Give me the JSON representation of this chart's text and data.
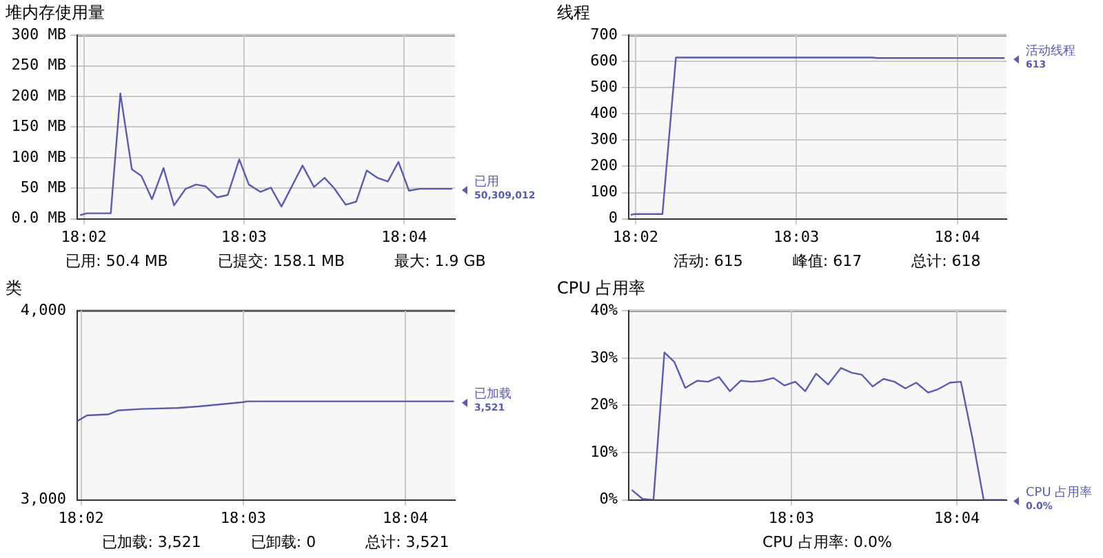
{
  "chart_data": [
    {
      "type": "line",
      "title": "堆内存使用量",
      "xlim": [
        18.0326,
        18.072
      ],
      "xticks": [
        {
          "value": 18.0333,
          "label": "18:02"
        },
        {
          "value": 18.05,
          "label": "18:03"
        },
        {
          "value": 18.0667,
          "label": "18:04"
        }
      ],
      "ylim": [
        0,
        300
      ],
      "yticks": [
        {
          "value": 0,
          "label": "0.0 MB"
        },
        {
          "value": 50,
          "label": "50 MB"
        },
        {
          "value": 100,
          "label": "100 MB"
        },
        {
          "value": 150,
          "label": "150 MB"
        },
        {
          "value": 200,
          "label": "200 MB"
        },
        {
          "value": 250,
          "label": "250 MB"
        },
        {
          "value": 300,
          "label": "300 MB"
        }
      ],
      "grid": true,
      "series": [
        {
          "name": "已用",
          "color": "#5a5ab4",
          "x": [
            18.0329,
            18.0336,
            18.0361,
            18.0371,
            18.0383,
            18.0393,
            18.0404,
            18.0416,
            18.0427,
            18.0439,
            18.045,
            18.046,
            18.0472,
            18.0483,
            18.0495,
            18.0505,
            18.0517,
            18.0528,
            18.0539,
            18.0561,
            18.0573,
            18.0584,
            18.0594,
            18.0606,
            18.0617,
            18.0628,
            18.0639,
            18.065,
            18.0661,
            18.0672,
            18.0683,
            18.0717
          ],
          "values": [
            6,
            9,
            9,
            205,
            81,
            70,
            32,
            83,
            22,
            49,
            56,
            53,
            35,
            39,
            97,
            56,
            44,
            51,
            20,
            87,
            52,
            67,
            50,
            23,
            28,
            79,
            67,
            61,
            93,
            46,
            49,
            49
          ]
        }
      ],
      "annotations": [
        "50,309,012",
        "已用: 50.4 MB",
        "已提交: 158.1 MB",
        "最大: 1.9 GB"
      ]
    },
    {
      "type": "line",
      "title": "线程",
      "xlim": [
        18.0326,
        18.0718
      ],
      "xticks": [
        {
          "value": 18.0333,
          "label": "18:02"
        },
        {
          "value": 18.05,
          "label": "18:03"
        },
        {
          "value": 18.0667,
          "label": "18:04"
        }
      ],
      "ylim": [
        0,
        700
      ],
      "yticks": [
        0,
        100,
        200,
        300,
        400,
        500,
        600,
        700
      ],
      "grid": true,
      "series": [
        {
          "name": "活动线程",
          "color": "#5a5ab4",
          "x": [
            18.0328,
            18.0332,
            18.0361,
            18.0375,
            18.0579,
            18.0584,
            18.0716
          ],
          "values": [
            15,
            18,
            18,
            615,
            615,
            613,
            613
          ]
        }
      ],
      "annotations": [
        "613",
        "活动: 615",
        "峰值: 617",
        "总计: 618"
      ]
    },
    {
      "type": "line",
      "title": "类",
      "xlim": [
        18.0329,
        18.0718
      ],
      "xticks": [
        {
          "value": 18.0333,
          "label": "18:02"
        },
        {
          "value": 18.05,
          "label": "18:03"
        },
        {
          "value": 18.0667,
          "label": "18:04"
        }
      ],
      "ylim": [
        3000,
        4000
      ],
      "yticks": [
        {
          "value": 3000,
          "label": "3,000"
        },
        {
          "value": 4000,
          "label": "4,000"
        }
      ],
      "grid": "x",
      "series": [
        {
          "name": "已加载",
          "color": "#5a5ab4",
          "x": [
            18.0329,
            18.0339,
            18.0361,
            18.0371,
            18.0396,
            18.0432,
            18.0454,
            18.05,
            18.0504,
            18.0717
          ],
          "values": [
            3416,
            3447,
            3452,
            3473,
            3481,
            3486,
            3494,
            3517,
            3521,
            3521
          ]
        }
      ],
      "annotations": [
        "3,521",
        "已加载: 3,521",
        "已卸载: 0",
        "总计: 3,521"
      ]
    },
    {
      "type": "line",
      "title": "CPU 占用率",
      "xlim": [
        18.0336,
        18.0717
      ],
      "xticks": [
        {
          "value": 18.05,
          "label": "18:03"
        },
        {
          "value": 18.0667,
          "label": "18:04"
        }
      ],
      "ylim": [
        0,
        40
      ],
      "yticks": [
        {
          "value": 0,
          "label": "0%"
        },
        {
          "value": 10,
          "label": "10%"
        },
        {
          "value": 20,
          "label": "20%"
        },
        {
          "value": 30,
          "label": "30%"
        },
        {
          "value": 40,
          "label": "40%"
        }
      ],
      "grid": true,
      "series": [
        {
          "name": "CPU 占用率",
          "color": "#5a5ab4",
          "x": [
            18.0339,
            18.035,
            18.0361,
            18.0372,
            18.0382,
            18.0393,
            18.0405,
            18.0416,
            18.0427,
            18.0438,
            18.0449,
            18.046,
            18.0471,
            18.0482,
            18.0493,
            18.0504,
            18.0514,
            18.0525,
            18.0537,
            18.055,
            18.0561,
            18.0571,
            18.0582,
            18.0593,
            18.0604,
            18.0615,
            18.0626,
            18.0638,
            18.0648,
            18.066,
            18.0671,
            18.0683,
            18.0694,
            18.0716
          ],
          "values": [
            2.1,
            0.2,
            0,
            31.2,
            29.2,
            23.7,
            25.2,
            25,
            26,
            23,
            25.2,
            25,
            25.2,
            25.8,
            24.2,
            25,
            23,
            26.7,
            24.4,
            27.9,
            26.9,
            26.5,
            24,
            25.6,
            25,
            23.6,
            24.8,
            22.7,
            23.4,
            24.8,
            25,
            12.7,
            0,
            0
          ]
        }
      ],
      "annotations": [
        "0.0%",
        "CPU 占用率: 0.0%"
      ]
    }
  ]
}
